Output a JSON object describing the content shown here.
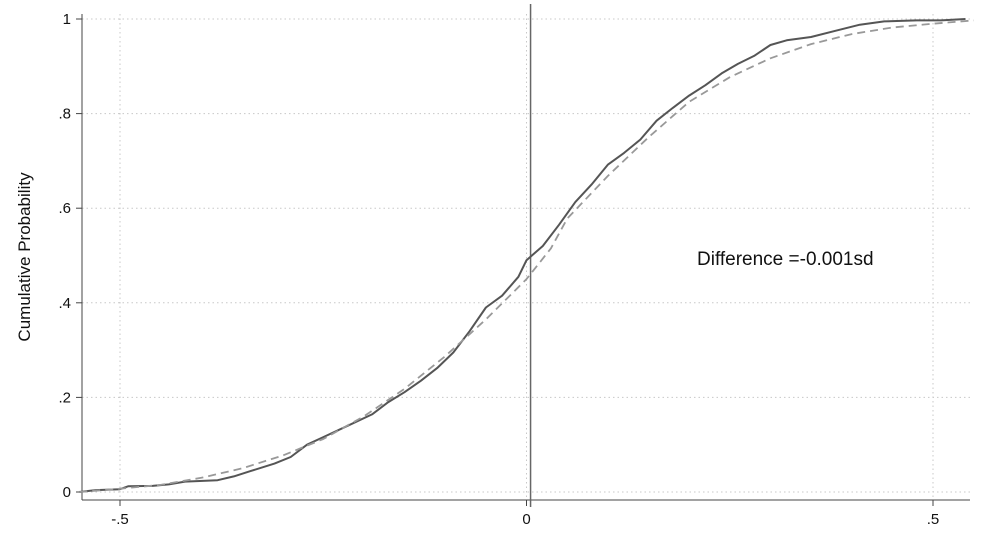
{
  "chart_data": {
    "type": "line",
    "title": "",
    "xlabel": "",
    "ylabel": "Cumulative Probability",
    "xlim": [
      -0.555,
      0.555
    ],
    "ylim": [
      0,
      1
    ],
    "x_ticks": [
      {
        "value": -0.5,
        "label": "-.5"
      },
      {
        "value": 0,
        "label": "0"
      },
      {
        "value": 0.5,
        "label": ".5"
      }
    ],
    "y_ticks": [
      {
        "value": 0,
        "label": "0"
      },
      {
        "value": 0.2,
        "label": ".2"
      },
      {
        "value": 0.4,
        "label": ".4"
      },
      {
        "value": 0.6,
        "label": ".6"
      },
      {
        "value": 0.8,
        "label": ".8"
      },
      {
        "value": 1,
        "label": "1"
      }
    ],
    "grid": true,
    "reference_line_x": 0.005,
    "annotation": "Difference =-0.001sd",
    "series": [
      {
        "style": "solid",
        "color": "#555555",
        "points": [
          [
            -0.55,
            0.0
          ],
          [
            -0.53,
            0.004
          ],
          [
            -0.5,
            0.006
          ],
          [
            -0.49,
            0.012
          ],
          [
            -0.46,
            0.013
          ],
          [
            -0.44,
            0.016
          ],
          [
            -0.42,
            0.022
          ],
          [
            -0.38,
            0.025
          ],
          [
            -0.36,
            0.033
          ],
          [
            -0.34,
            0.044
          ],
          [
            -0.31,
            0.06
          ],
          [
            -0.29,
            0.074
          ],
          [
            -0.27,
            0.1
          ],
          [
            -0.25,
            0.116
          ],
          [
            -0.22,
            0.14
          ],
          [
            -0.19,
            0.164
          ],
          [
            -0.17,
            0.19
          ],
          [
            -0.15,
            0.211
          ],
          [
            -0.13,
            0.235
          ],
          [
            -0.11,
            0.262
          ],
          [
            -0.09,
            0.295
          ],
          [
            -0.07,
            0.34
          ],
          [
            -0.05,
            0.39
          ],
          [
            -0.03,
            0.415
          ],
          [
            -0.01,
            0.455
          ],
          [
            0.0,
            0.49
          ],
          [
            0.02,
            0.52
          ],
          [
            0.04,
            0.565
          ],
          [
            0.06,
            0.613
          ],
          [
            0.08,
            0.65
          ],
          [
            0.1,
            0.692
          ],
          [
            0.12,
            0.717
          ],
          [
            0.14,
            0.745
          ],
          [
            0.16,
            0.785
          ],
          [
            0.18,
            0.812
          ],
          [
            0.2,
            0.838
          ],
          [
            0.22,
            0.86
          ],
          [
            0.24,
            0.885
          ],
          [
            0.26,
            0.905
          ],
          [
            0.28,
            0.922
          ],
          [
            0.3,
            0.945
          ],
          [
            0.32,
            0.955
          ],
          [
            0.35,
            0.962
          ],
          [
            0.38,
            0.975
          ],
          [
            0.41,
            0.988
          ],
          [
            0.44,
            0.995
          ],
          [
            0.48,
            0.997
          ],
          [
            0.51,
            0.997
          ],
          [
            0.54,
            1.0
          ]
        ]
      },
      {
        "style": "dashed",
        "color": "#999999",
        "points": [
          [
            -0.55,
            0.0
          ],
          [
            -0.5,
            0.007
          ],
          [
            -0.45,
            0.015
          ],
          [
            -0.4,
            0.03
          ],
          [
            -0.35,
            0.05
          ],
          [
            -0.3,
            0.077
          ],
          [
            -0.25,
            0.112
          ],
          [
            -0.2,
            0.16
          ],
          [
            -0.15,
            0.218
          ],
          [
            -0.1,
            0.287
          ],
          [
            -0.05,
            0.365
          ],
          [
            0.0,
            0.45
          ],
          [
            0.03,
            0.515
          ],
          [
            0.05,
            0.578
          ],
          [
            0.1,
            0.668
          ],
          [
            0.15,
            0.75
          ],
          [
            0.2,
            0.825
          ],
          [
            0.25,
            0.877
          ],
          [
            0.3,
            0.917
          ],
          [
            0.35,
            0.947
          ],
          [
            0.4,
            0.968
          ],
          [
            0.45,
            0.982
          ],
          [
            0.5,
            0.99
          ],
          [
            0.55,
            0.997
          ]
        ]
      }
    ]
  }
}
